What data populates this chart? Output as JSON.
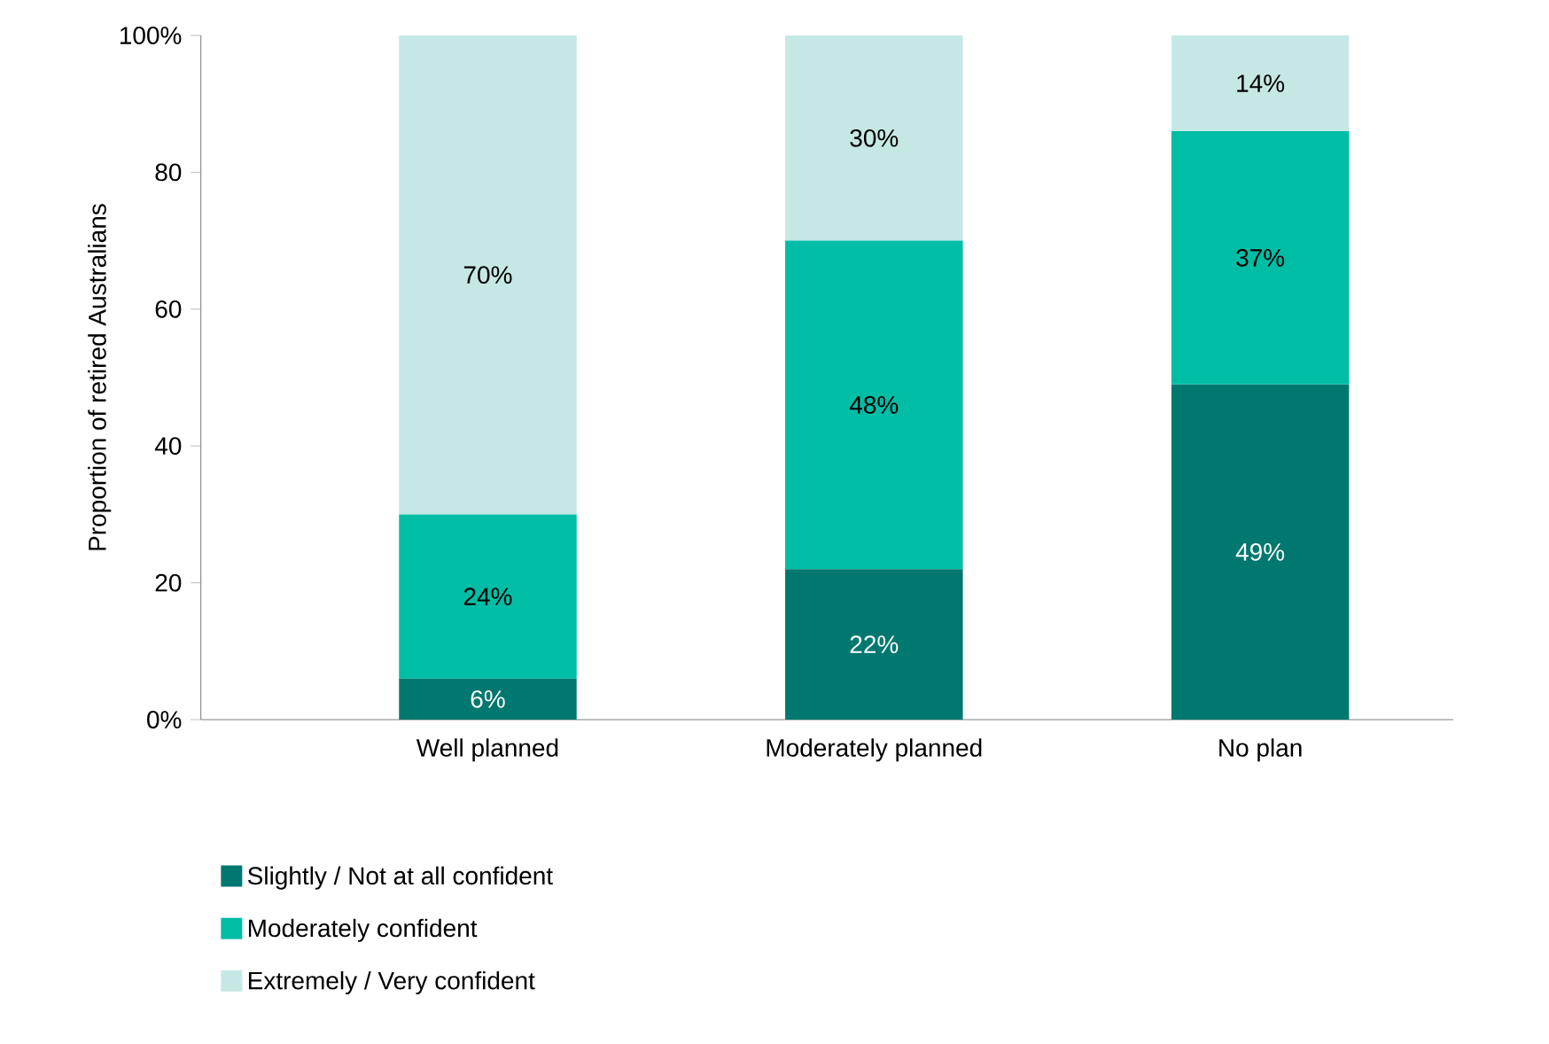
{
  "chart_data": {
    "type": "bar",
    "stacked": true,
    "ylabel": "Proportion of retired Australians",
    "categories": [
      "Well planned",
      "Moderately planned",
      "No plan"
    ],
    "series": [
      {
        "name": "Slightly / Not at all confident",
        "color": "#00786f",
        "values": [
          6,
          22,
          49
        ],
        "value_labels": [
          "6%",
          "22%",
          "49%"
        ]
      },
      {
        "name": "Moderately confident",
        "color": "#00bda5",
        "values": [
          24,
          48,
          37
        ],
        "value_labels": [
          "24%",
          "48%",
          "37%"
        ]
      },
      {
        "name": "Extremely / Very confident",
        "color": "#c6e8e5",
        "values": [
          70,
          30,
          14
        ],
        "value_labels": [
          "70%",
          "30%",
          "14%"
        ]
      }
    ],
    "ylim": [
      0,
      100
    ],
    "yticks": [
      {
        "value": 0,
        "label": "0%"
      },
      20,
      40,
      60,
      80,
      {
        "value": 100,
        "label": "100%"
      }
    ],
    "legend": "bottom",
    "grid": false
  }
}
